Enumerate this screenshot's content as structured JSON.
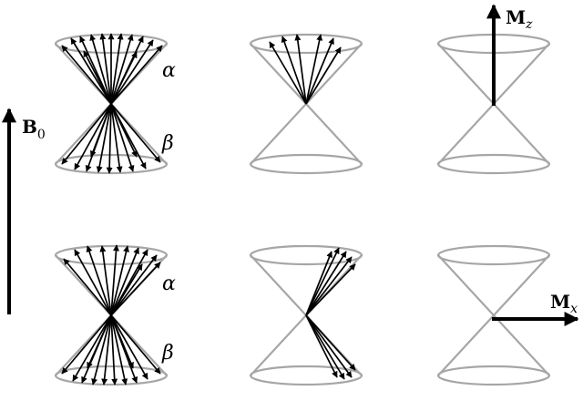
{
  "field": {
    "symbol": "B",
    "subscript": "0"
  },
  "magnetization_z": {
    "symbol": "M",
    "subscript": "z"
  },
  "magnetization_x": {
    "symbol": "M",
    "subscript": "x"
  },
  "upper_cone_label": "α",
  "lower_cone_label": "β",
  "colors": {
    "cone": "#a6a6a6",
    "vector": "#000000"
  }
}
